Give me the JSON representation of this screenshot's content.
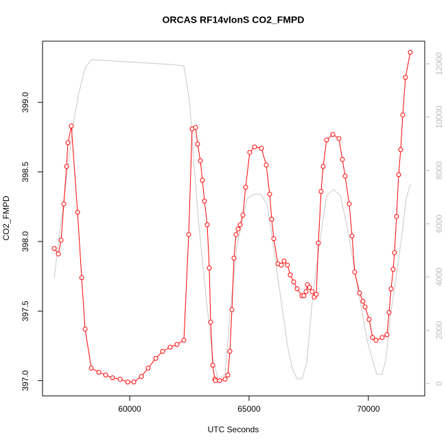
{
  "chart_data": {
    "type": "line",
    "title": "ORCAS RF14vlonS CO2_FMPD",
    "x_label": "UTC Seconds",
    "y_label": "CO2_FMPD",
    "xlim": [
      56350,
      72360
    ],
    "xticks": [
      60000,
      65000,
      70000
    ],
    "ylim": [
      396.89,
      399.44
    ],
    "yticks": [
      {
        "value": 397,
        "label": "397.0"
      },
      397.5,
      {
        "value": 398,
        "label": "398.0"
      },
      398.5,
      {
        "value": 399,
        "label": "399.0"
      }
    ],
    "y2lim": [
      -464,
      12850
    ],
    "y2ticks": [
      0,
      2000,
      4000,
      6000,
      8000,
      10000,
      12000
    ],
    "y2_color": "#bbbbbb",
    "series": [
      {
        "color": "#ff0000",
        "markers": true,
        "x": [
          56840,
          57012,
          57127,
          57242,
          57357,
          57414,
          57558,
          57817,
          57989,
          58133,
          58391,
          58708,
          58995,
          59282,
          59599,
          59915,
          60173,
          60490,
          60777,
          61093,
          61381,
          61697,
          61984,
          62271,
          62473,
          62616,
          62760,
          62846,
          62961,
          63047,
          63134,
          63249,
          63335,
          63392,
          63479,
          63565,
          63593,
          63766,
          63996,
          64111,
          64197,
          64283,
          64369,
          64456,
          64542,
          64628,
          64743,
          64858,
          65030,
          65232,
          65519,
          65720,
          65864,
          65950,
          66036,
          66209,
          66353,
          66467,
          66611,
          66726,
          66870,
          67014,
          67215,
          67301,
          67387,
          67445,
          67531,
          67646,
          67732,
          67818,
          67904,
          68019,
          68106,
          68249,
          68508,
          68767,
          68910,
          69025,
          69198,
          69313,
          69428,
          69629,
          69773,
          69859,
          70031,
          70175,
          70319,
          70577,
          70778,
          70864,
          70951,
          71037,
          71094,
          71180,
          71267,
          71353,
          71439,
          71554,
          71755
        ],
        "values": [
          397.95,
          397.91,
          398.01,
          398.27,
          398.54,
          398.71,
          398.83,
          398.21,
          397.74,
          397.37,
          397.09,
          397.06,
          397.04,
          397.02,
          397.01,
          396.99,
          396.99,
          397.03,
          397.09,
          397.16,
          397.21,
          397.24,
          397.26,
          397.29,
          398.05,
          398.81,
          398.82,
          398.7,
          398.58,
          398.44,
          398.29,
          398.12,
          397.81,
          397.42,
          397.11,
          397.01,
          397.0,
          397.0,
          397.01,
          397.04,
          397.21,
          397.51,
          397.88,
          398.05,
          398.09,
          398.12,
          398.19,
          398.39,
          398.64,
          398.68,
          398.67,
          398.55,
          398.34,
          398.16,
          398.02,
          397.84,
          397.83,
          397.86,
          397.83,
          397.76,
          397.71,
          397.66,
          397.61,
          397.61,
          397.64,
          397.69,
          397.67,
          397.64,
          397.6,
          397.62,
          397.99,
          398.36,
          398.54,
          398.73,
          398.77,
          398.74,
          398.59,
          398.47,
          398.27,
          398.04,
          397.78,
          397.63,
          397.57,
          397.53,
          397.44,
          397.31,
          397.29,
          397.31,
          397.33,
          397.49,
          397.66,
          397.8,
          397.92,
          398.18,
          398.48,
          398.66,
          398.91,
          399.18,
          399.36
        ]
      },
      {
        "color": "#c8c8c8",
        "axis": "y2",
        "markers": false,
        "x": [
          56840,
          57098,
          57357,
          57615,
          57874,
          58133,
          58391,
          58880,
          60317,
          61754,
          62271,
          62501,
          62674,
          62904,
          63191,
          63479,
          63709,
          63996,
          64197,
          64484,
          64915,
          65203,
          65490,
          65778,
          66065,
          66353,
          66640,
          66841,
          67014,
          67215,
          67416,
          67646,
          67933,
          68249,
          68536,
          68824,
          69111,
          69398,
          69686,
          69973,
          70347,
          70577,
          70749,
          70921,
          71180,
          71410,
          71582,
          71755
        ],
        "values": [
          3970,
          5897,
          7699,
          9631,
          10918,
          11845,
          12154,
          12128,
          12051,
          11974,
          11922,
          10661,
          8472,
          5897,
          3322,
          1004,
          103,
          361,
          2549,
          5124,
          6927,
          7107,
          7107,
          6669,
          4867,
          3064,
          1262,
          489,
          180,
          180,
          747,
          3064,
          5124,
          7056,
          7287,
          7056,
          5897,
          4352,
          2936,
          1519,
          361,
          335,
          1004,
          2549,
          4094,
          5639,
          6927,
          7493
        ]
      }
    ]
  }
}
